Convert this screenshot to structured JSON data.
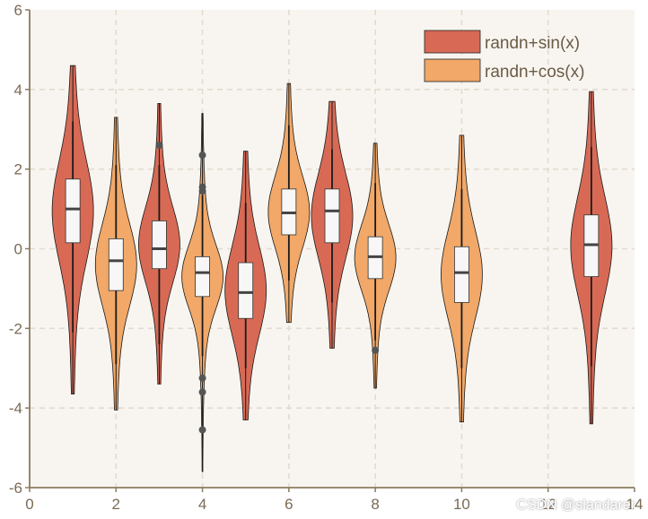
{
  "chart_data": {
    "type": "violin",
    "title": "",
    "xlabel": "",
    "ylabel": "",
    "xlim": [
      0,
      14
    ],
    "ylim": [
      -6,
      6
    ],
    "xticks": [
      "0",
      "2",
      "4",
      "6",
      "8",
      "10",
      "12",
      "14"
    ],
    "yticks": [
      "6",
      "4",
      "2",
      "0",
      "-2",
      "-4",
      "-6"
    ],
    "grid": true,
    "legend_position": "top-right",
    "colors": {
      "sin": "#d86a55",
      "cos": "#f1a868",
      "background": "#f8f5f0",
      "axis": "#8a7a60"
    },
    "series": [
      {
        "name": "randn+sin(x)",
        "color": "#d86a55"
      },
      {
        "name": "randn+cos(x)",
        "color": "#f1a868"
      }
    ],
    "violins": [
      {
        "x": 1,
        "series": 0,
        "min": -3.65,
        "max": 4.6,
        "q1": 0.15,
        "median": 1.0,
        "q3": 1.75,
        "wlo": -2.1,
        "whi": 3.2,
        "outliers": []
      },
      {
        "x": 2,
        "series": 1,
        "min": -4.05,
        "max": 3.3,
        "q1": -1.05,
        "median": -0.3,
        "q3": 0.25,
        "wlo": -2.9,
        "whi": 2.1,
        "outliers": []
      },
      {
        "x": 3,
        "series": 0,
        "min": -3.4,
        "max": 3.65,
        "q1": -0.5,
        "median": 0.0,
        "q3": 0.7,
        "wlo": -2.4,
        "whi": 2.1,
        "outliers": [
          2.6
        ]
      },
      {
        "x": 4,
        "series": 1,
        "min": -5.6,
        "max": 3.4,
        "q1": -1.2,
        "median": -0.6,
        "q3": -0.2,
        "wlo": -2.7,
        "whi": 1.35,
        "outliers": [
          2.35,
          1.55,
          1.45,
          -3.25,
          -3.6,
          -4.55
        ]
      },
      {
        "x": 5,
        "series": 0,
        "min": -4.3,
        "max": 2.45,
        "q1": -1.75,
        "median": -1.1,
        "q3": -0.35,
        "wlo": -3.0,
        "whi": 1.15,
        "outliers": []
      },
      {
        "x": 6,
        "series": 1,
        "min": -1.85,
        "max": 4.15,
        "q1": 0.35,
        "median": 0.9,
        "q3": 1.5,
        "wlo": -0.8,
        "whi": 3.1,
        "outliers": []
      },
      {
        "x": 7,
        "series": 0,
        "min": -2.5,
        "max": 3.7,
        "q1": 0.15,
        "median": 0.95,
        "q3": 1.5,
        "wlo": -1.35,
        "whi": 2.5,
        "outliers": []
      },
      {
        "x": 8,
        "series": 1,
        "min": -3.5,
        "max": 2.65,
        "q1": -0.75,
        "median": -0.2,
        "q3": 0.3,
        "wlo": -2.3,
        "whi": 1.65,
        "outliers": [
          -2.55
        ]
      },
      {
        "x": 10,
        "series": 1,
        "min": -4.35,
        "max": 2.85,
        "q1": -1.35,
        "median": -0.6,
        "q3": 0.05,
        "wlo": -3.0,
        "whi": 1.5,
        "outliers": []
      },
      {
        "x": 13,
        "series": 0,
        "min": -4.4,
        "max": 3.95,
        "q1": -0.7,
        "median": 0.1,
        "q3": 0.85,
        "wlo": -2.95,
        "whi": 2.55,
        "outliers": []
      }
    ]
  },
  "watermark": "CSDN @slandarer"
}
